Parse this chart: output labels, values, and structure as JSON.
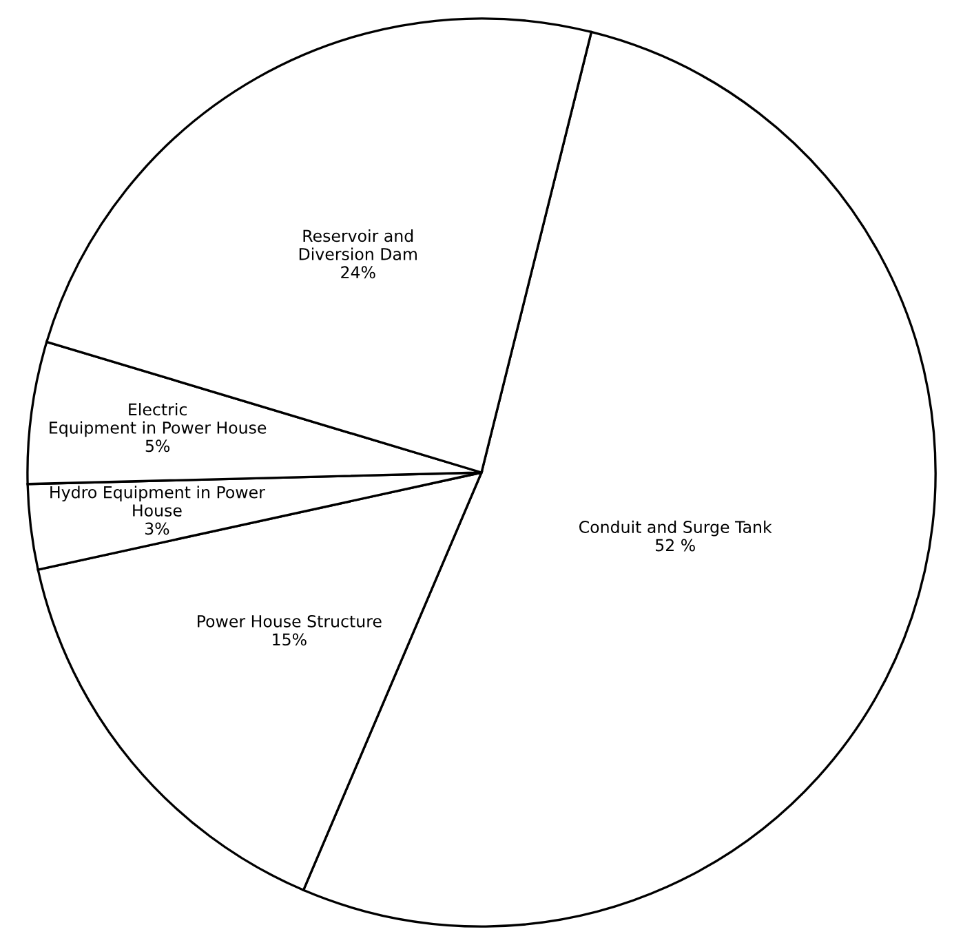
{
  "chart_data": {
    "type": "pie",
    "categories": [
      "Conduit and Surge Tank",
      "Power House Structure",
      "Hydro Equipment in Power\nHouse",
      "Electric\nEquipment in Power House",
      "Reservoir and\nDiversion Dam"
    ],
    "values": [
      52,
      15,
      3,
      5,
      24
    ],
    "value_labels": [
      "52 %",
      "15%",
      "3%",
      "5%",
      "24%"
    ],
    "colors": [
      "#ffffff",
      "#ffffff",
      "#ffffff",
      "#ffffff",
      "#ffffff"
    ]
  }
}
